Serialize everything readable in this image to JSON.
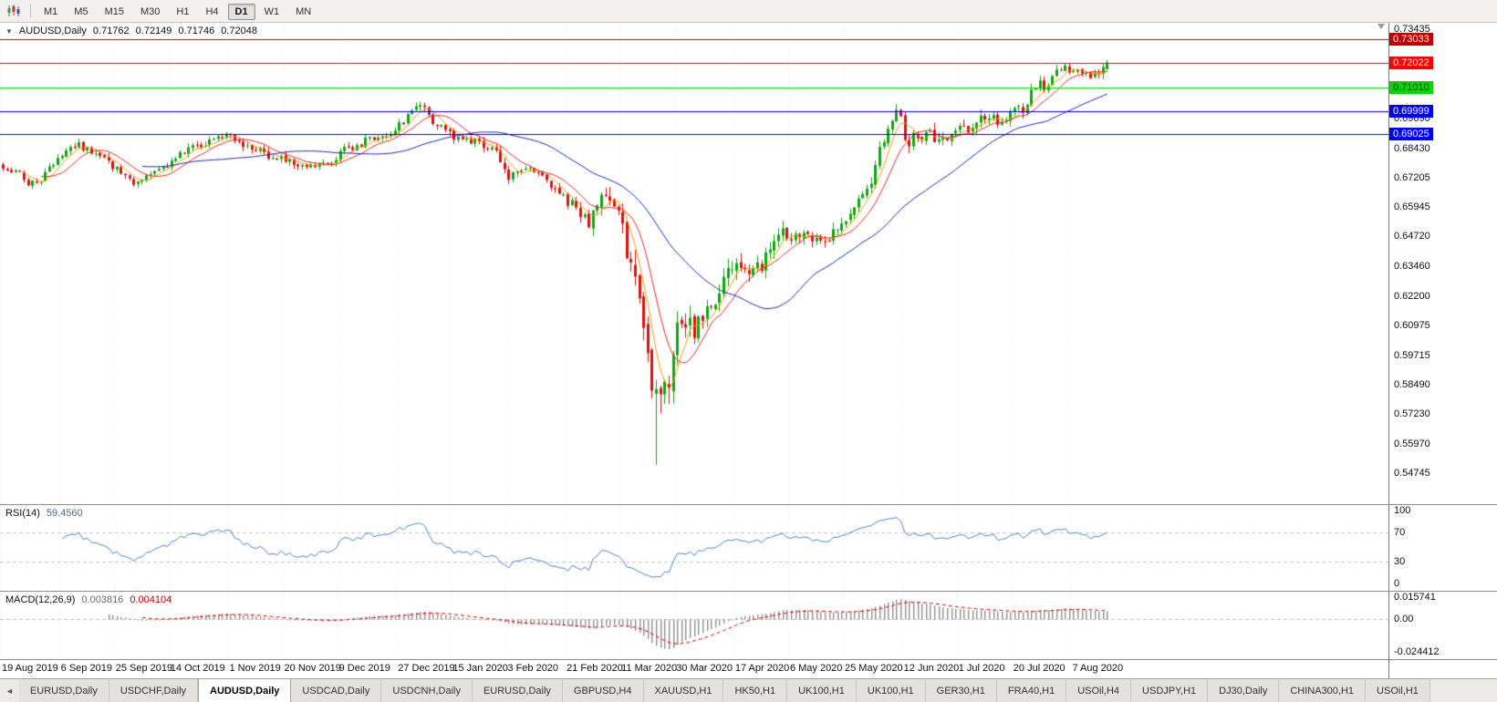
{
  "toolbar": {
    "chart_icon": "candlestick-chart",
    "timeframes": [
      {
        "label": "M1",
        "active": false
      },
      {
        "label": "M5",
        "active": false
      },
      {
        "label": "M15",
        "active": false
      },
      {
        "label": "M30",
        "active": false
      },
      {
        "label": "H1",
        "active": false
      },
      {
        "label": "H4",
        "active": false
      },
      {
        "label": "D1",
        "active": true
      },
      {
        "label": "W1",
        "active": false
      },
      {
        "label": "MN",
        "active": false
      }
    ]
  },
  "main_chart": {
    "header": {
      "collapse_icon": "▼",
      "symbol": "AUDUSD,Daily",
      "open": "0.71762",
      "high": "0.72149",
      "low": "0.71746",
      "close": "0.72048"
    },
    "levels": [
      {
        "price": 0.73033,
        "label": "0.73033",
        "color": "#c00000",
        "text_color": "#ffffff"
      },
      {
        "price": 0.72022,
        "label": "0.72022",
        "color": "#ff0000",
        "text_color": "#ffffff"
      },
      {
        "price": 0.7101,
        "label": "0.71010",
        "color": "#00d800",
        "text_color": "#003300"
      },
      {
        "price": 0.69999,
        "label": "0.69999",
        "color": "#0000ff",
        "text_color": "#ffffff"
      },
      {
        "price": 0.69025,
        "label": "0.69025",
        "color": "#0000ff",
        "text_color": "#ffffff"
      }
    ],
    "y_axis": [
      "0.73435",
      "0.69690",
      "0.68430",
      "0.67205",
      "0.65945",
      "0.64720",
      "0.63460",
      "0.62200",
      "0.60975",
      "0.59715",
      "0.58490",
      "0.57230",
      "0.55970",
      "0.54745"
    ]
  },
  "rsi": {
    "label": "RSI(14)",
    "value": "59.4560",
    "axis": [
      "100",
      "70",
      "30",
      "0"
    ],
    "levels": [
      70,
      30
    ],
    "line_color": "#4a86c8"
  },
  "macd": {
    "label": "MACD(12,26,9)",
    "value1": "0.003816",
    "value2": "0.004104",
    "axis": [
      "0.015741",
      "0.00",
      "-0.024412"
    ],
    "max": 0.015741,
    "min": -0.024412,
    "histogram_color": "#909090",
    "signal_color": "#e00000"
  },
  "x_axis": [
    "19 Aug 2019",
    "6 Sep 2019",
    "25 Sep 2019",
    "14 Oct 2019",
    "1 Nov 2019",
    "20 Nov 2019",
    "9 Dec 2019",
    "27 Dec 2019",
    "15 Jan 2020",
    "3 Feb 2020",
    "21 Feb 2020",
    "11 Mar 2020",
    "30 Mar 2020",
    "17 Apr 2020",
    "6 May 2020",
    "25 May 2020",
    "12 Jun 2020",
    "1 Jul 2020",
    "20 Jul 2020",
    "7 Aug 2020"
  ],
  "tabbar": {
    "scroll_left_icon": "◄",
    "tabs": [
      {
        "label": "EURUSD,Daily",
        "active": false
      },
      {
        "label": "USDCHF,Daily",
        "active": false
      },
      {
        "label": "AUDUSD,Daily",
        "active": true
      },
      {
        "label": "USDCAD,Daily",
        "active": false
      },
      {
        "label": "USDCNH,Daily",
        "active": false
      },
      {
        "label": "EURUSD,Daily",
        "active": false
      },
      {
        "label": "GBPUSD,H4",
        "active": false
      },
      {
        "label": "XAUUSD,H1",
        "active": false
      },
      {
        "label": "HK50,H1",
        "active": false
      },
      {
        "label": "UK100,H1",
        "active": false
      },
      {
        "label": "UK100,H1",
        "active": false
      },
      {
        "label": "GER30,H1",
        "active": false
      },
      {
        "label": "FRA40,H1",
        "active": false
      },
      {
        "label": "USOil,H4",
        "active": false
      },
      {
        "label": "USDJPY,H1",
        "active": false
      },
      {
        "label": "DJ30,Daily",
        "active": false
      },
      {
        "label": "CHINA300,H1",
        "active": false
      },
      {
        "label": "USOil,H1",
        "active": false
      }
    ]
  },
  "chart_data": {
    "type": "candlestick",
    "symbol": "AUDUSD",
    "timeframe": "Daily",
    "title": "AUDUSD,Daily",
    "last_candle": {
      "open": 0.71762,
      "high": 0.72149,
      "low": 0.71746,
      "close": 0.72048
    },
    "price_top": 0.7372,
    "price_bottom": 0.5344,
    "candle_count": 263,
    "x_label_indices": [
      0,
      14,
      27,
      40,
      54,
      67,
      80,
      94,
      107,
      120,
      134,
      147,
      160,
      174,
      187,
      200,
      214,
      227,
      240,
      254
    ],
    "close_keyframes": [
      [
        0,
        0.6775
      ],
      [
        3,
        0.6745
      ],
      [
        7,
        0.669
      ],
      [
        10,
        0.673
      ],
      [
        14,
        0.681
      ],
      [
        18,
        0.686
      ],
      [
        21,
        0.683
      ],
      [
        24,
        0.679
      ],
      [
        27,
        0.676
      ],
      [
        31,
        0.67
      ],
      [
        33,
        0.672
      ],
      [
        36,
        0.675
      ],
      [
        40,
        0.6785
      ],
      [
        44,
        0.684
      ],
      [
        48,
        0.687
      ],
      [
        52,
        0.6895
      ],
      [
        54,
        0.69
      ],
      [
        57,
        0.6865
      ],
      [
        60,
        0.684
      ],
      [
        63,
        0.6815
      ],
      [
        67,
        0.679
      ],
      [
        71,
        0.677
      ],
      [
        75,
        0.6765
      ],
      [
        78,
        0.678
      ],
      [
        80,
        0.683
      ],
      [
        84,
        0.686
      ],
      [
        88,
        0.6885
      ],
      [
        91,
        0.69
      ],
      [
        94,
        0.6945
      ],
      [
        97,
        0.699
      ],
      [
        99,
        0.702
      ],
      [
        101,
        0.6985
      ],
      [
        103,
        0.694
      ],
      [
        107,
        0.689
      ],
      [
        111,
        0.688
      ],
      [
        114,
        0.6855
      ],
      [
        117,
        0.682
      ],
      [
        120,
        0.672
      ],
      [
        123,
        0.674
      ],
      [
        126,
        0.676
      ],
      [
        129,
        0.671
      ],
      [
        132,
        0.666
      ],
      [
        134,
        0.662
      ],
      [
        137,
        0.657
      ],
      [
        139,
        0.653
      ],
      [
        141,
        0.663
      ],
      [
        144,
        0.66
      ],
      [
        146,
        0.655
      ],
      [
        147,
        0.649
      ],
      [
        149,
        0.633
      ],
      [
        151,
        0.621
      ],
      [
        153,
        0.599
      ],
      [
        155,
        0.576
      ],
      [
        157,
        0.58
      ],
      [
        159,
        0.596
      ],
      [
        160,
        0.609
      ],
      [
        162,
        0.613
      ],
      [
        164,
        0.607
      ],
      [
        166,
        0.612
      ],
      [
        169,
        0.622
      ],
      [
        172,
        0.634
      ],
      [
        174,
        0.635
      ],
      [
        177,
        0.629
      ],
      [
        180,
        0.636
      ],
      [
        183,
        0.644
      ],
      [
        185,
        0.651
      ],
      [
        187,
        0.646
      ],
      [
        190,
        0.648
      ],
      [
        193,
        0.644
      ],
      [
        196,
        0.646
      ],
      [
        200,
        0.654
      ],
      [
        203,
        0.664
      ],
      [
        206,
        0.672
      ],
      [
        209,
        0.69
      ],
      [
        211,
        0.698
      ],
      [
        213,
        0.701
      ],
      [
        214,
        0.686
      ],
      [
        216,
        0.688
      ],
      [
        219,
        0.692
      ],
      [
        222,
        0.686
      ],
      [
        225,
        0.69
      ],
      [
        227,
        0.692
      ],
      [
        230,
        0.694
      ],
      [
        233,
        0.698
      ],
      [
        236,
        0.696
      ],
      [
        239,
        0.699
      ],
      [
        242,
        0.701
      ],
      [
        244,
        0.708
      ],
      [
        246,
        0.712
      ],
      [
        248,
        0.71
      ],
      [
        250,
        0.716
      ],
      [
        252,
        0.719
      ],
      [
        254,
        0.716
      ],
      [
        256,
        0.718
      ],
      [
        258,
        0.713
      ],
      [
        260,
        0.718
      ],
      [
        262,
        0.7205
      ]
    ],
    "volatility_keyframes": [
      [
        0,
        0.0038
      ],
      [
        100,
        0.0036
      ],
      [
        134,
        0.005
      ],
      [
        146,
        0.0085
      ],
      [
        150,
        0.013
      ],
      [
        154,
        0.0185
      ],
      [
        158,
        0.015
      ],
      [
        162,
        0.011
      ],
      [
        170,
        0.0085
      ],
      [
        182,
        0.007
      ],
      [
        200,
        0.0058
      ],
      [
        210,
        0.0075
      ],
      [
        216,
        0.0065
      ],
      [
        240,
        0.005
      ],
      [
        262,
        0.0048
      ]
    ],
    "spike_low": {
      "index": 155,
      "price": 0.551
    },
    "overlays": [
      {
        "name": "ma-fast",
        "type": "sma",
        "period": 5,
        "color": "#ff9900"
      },
      {
        "name": "ma-mid",
        "type": "sma",
        "period": 10,
        "color": "#ff2222"
      },
      {
        "name": "ma-slow",
        "type": "sma",
        "period": 34,
        "color": "#2525c8"
      }
    ],
    "indicators": [
      {
        "name": "RSI",
        "period": 14,
        "range": [
          0,
          100
        ],
        "levels": [
          70,
          30
        ]
      },
      {
        "name": "MACD",
        "fast": 12,
        "slow": 26,
        "signal": 9,
        "range": [
          -0.024412,
          0.015741
        ]
      }
    ],
    "colors": {
      "bull": "#0caa0c",
      "bear": "#e01010",
      "grid": "#e9e9e9"
    }
  }
}
